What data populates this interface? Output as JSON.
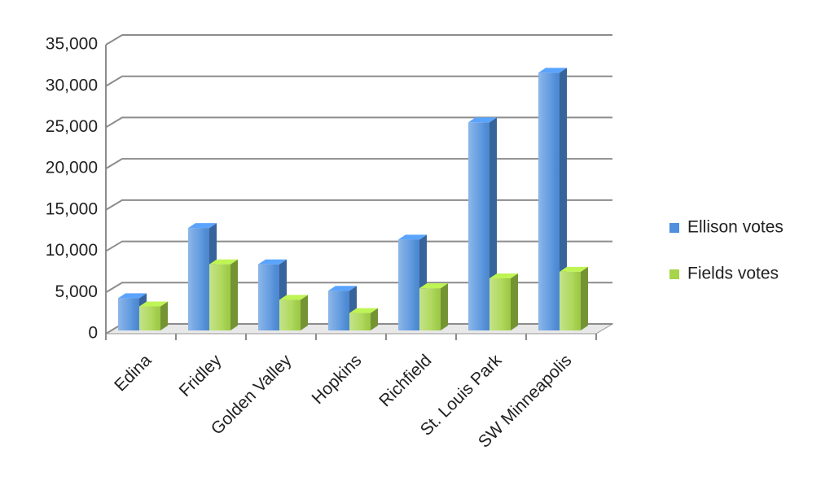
{
  "chart_data": {
    "type": "bar",
    "categories": [
      "Edina",
      "Fridley",
      "Golden Valley",
      "Hopkins",
      "Richfield",
      "St. Louis Park",
      "SW Minneapolis"
    ],
    "series": [
      {
        "name": "Ellison votes",
        "color": "#4f8fdc",
        "values": [
          4700,
          13200,
          8800,
          5600,
          11800,
          26000,
          32000
        ]
      },
      {
        "name": "Fields votes",
        "color": "#a6d44a",
        "values": [
          3700,
          8800,
          4500,
          2900,
          5900,
          7100,
          7900
        ]
      }
    ],
    "ylim": [
      0,
      35000
    ],
    "yticks": [
      {
        "value": 0,
        "label": "0"
      },
      {
        "value": 5000,
        "label": "5,000"
      },
      {
        "value": 10000,
        "label": "10,000"
      },
      {
        "value": 15000,
        "label": "15,000"
      },
      {
        "value": 20000,
        "label": "20,000"
      },
      {
        "value": 25000,
        "label": "25,000"
      },
      {
        "value": 30000,
        "label": "30,000"
      },
      {
        "value": 35000,
        "label": "35,000"
      }
    ],
    "grid": true,
    "legend": "right"
  }
}
